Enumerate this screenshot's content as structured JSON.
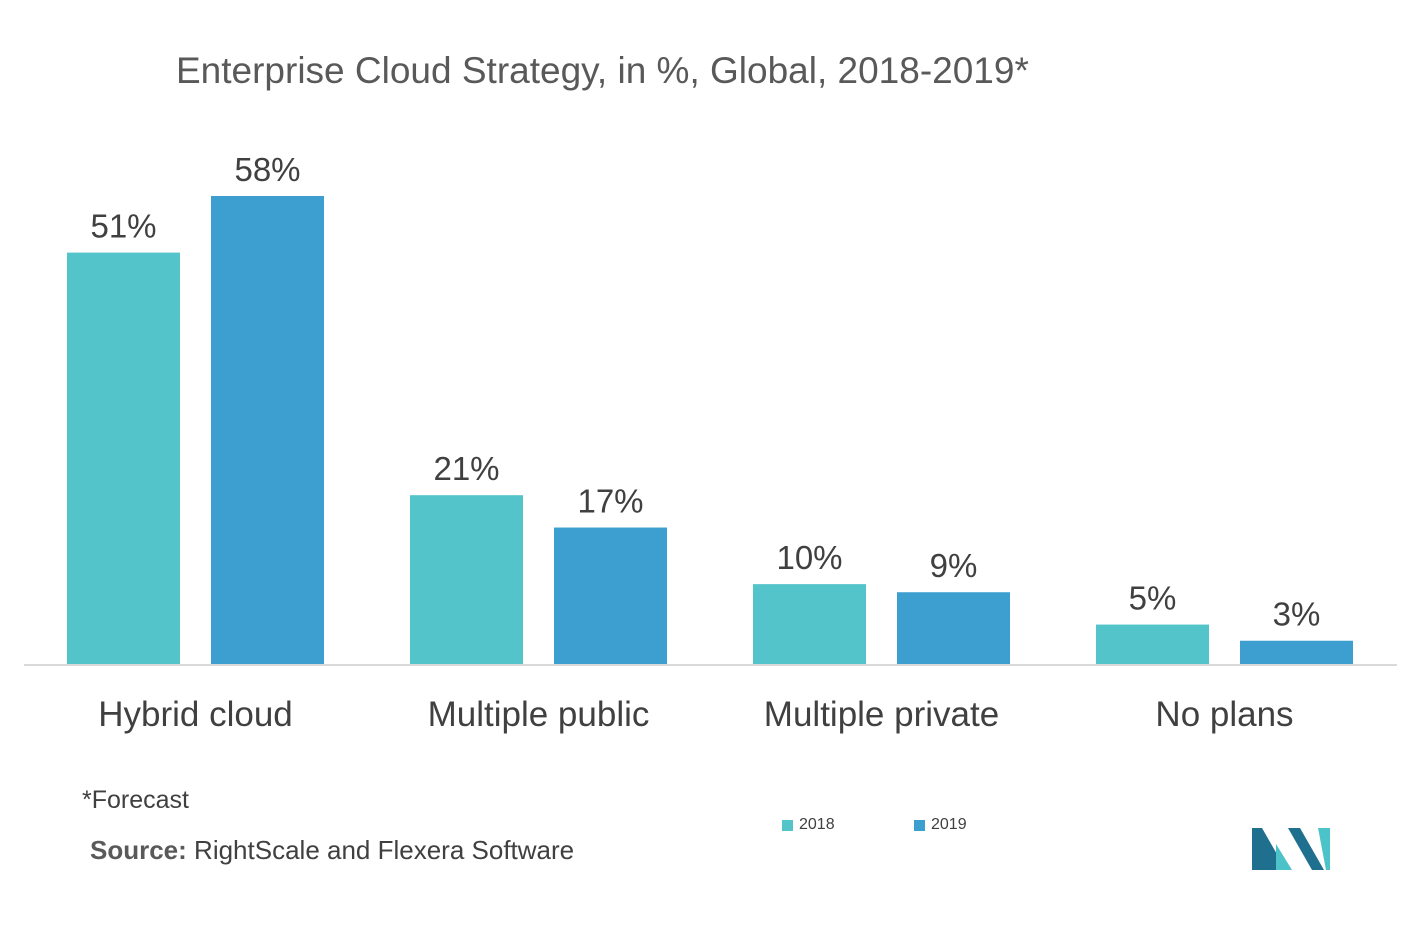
{
  "title": "Enterprise Cloud Strategy, in %, Global, 2018-2019*",
  "footnote": "*Forecast",
  "source": {
    "label": "Source:",
    "text": "RightScale and  Flexera Software"
  },
  "colors": {
    "series_2018": "#52C4CA",
    "series_2019": "#3D9FD0",
    "axis": "#D9D9D9",
    "logo_dark": "#1F6F8F",
    "logo_light": "#4CC3C9"
  },
  "chart_data": {
    "type": "bar",
    "categories": [
      "Hybrid cloud",
      "Multiple public",
      "Multiple private",
      "No plans"
    ],
    "series": [
      {
        "name": "2018",
        "values": [
          51,
          21,
          10,
          5
        ],
        "labels": [
          "51%",
          "21%",
          "10%",
          "5%"
        ]
      },
      {
        "name": "2019",
        "values": [
          58,
          17,
          9,
          3
        ],
        "labels": [
          "58%",
          "17%",
          "9%",
          "3%"
        ]
      }
    ],
    "title": "Enterprise Cloud Strategy, in %, Global, 2018-2019*",
    "xlabel": "",
    "ylabel": "",
    "ylim": [
      0,
      58
    ],
    "grid": false,
    "legend": "bottom-center"
  }
}
